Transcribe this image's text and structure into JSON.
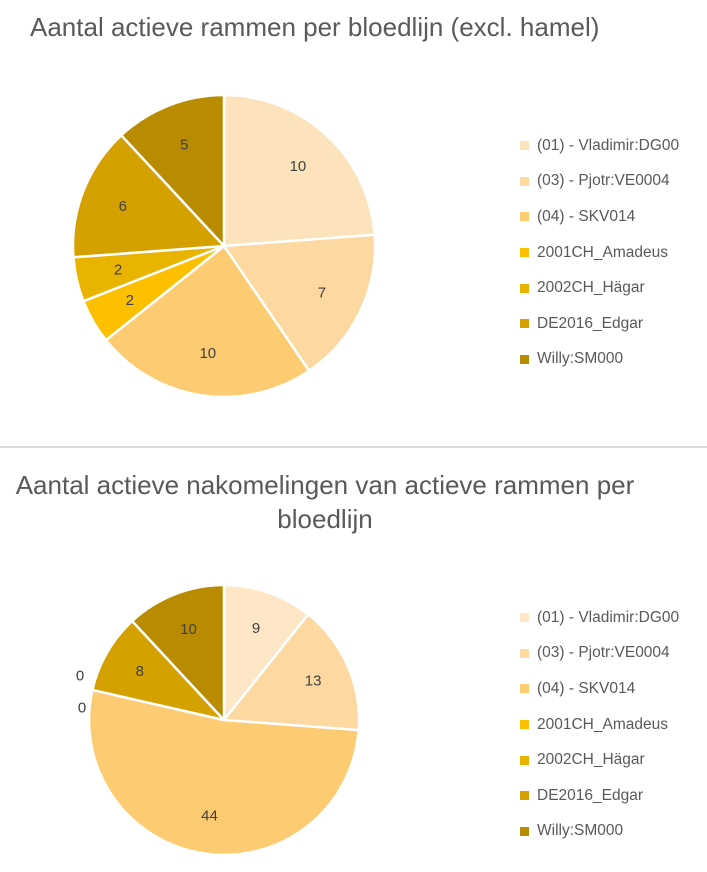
{
  "chart_data": [
    {
      "type": "pie",
      "title": "Aantal actieve rammen per bloedlijn (excl. hamel)",
      "categories": [
        "(01) - Vladimir:DG00",
        "(03) - Pjotr:VE0004",
        "(04) - SKV014",
        "2001CH_Amadeus",
        "2002CH_Hägar",
        "DE2016_Edgar",
        "Willy:SM000"
      ],
      "values": [
        10,
        7,
        10,
        2,
        2,
        6,
        5
      ],
      "data_labels": [
        "10",
        "7",
        "10",
        "2",
        "2",
        "6",
        "5"
      ],
      "colors": [
        "#fde3bb",
        "#fdd8a1",
        "#fdcb72",
        "#fcc000",
        "#e9b400",
        "#d4a100",
        "#b98b00"
      ],
      "legend_position": "right"
    },
    {
      "type": "pie",
      "title": "Aantal actieve nakomelingen van actieve rammen per bloedlijn",
      "categories": [
        "(01) - Vladimir:DG00",
        "(03) - Pjotr:VE0004",
        "(04) - SKV014",
        "2001CH_Amadeus",
        "2002CH_Hägar",
        "DE2016_Edgar",
        "Willy:SM000"
      ],
      "values": [
        9,
        13,
        44,
        0,
        0,
        8,
        10
      ],
      "data_labels": [
        "9",
        "13",
        "44",
        "0",
        "0",
        "8",
        "10"
      ],
      "colors": [
        "#fde7c7",
        "#fdd8a1",
        "#fdcb72",
        "#fcc000",
        "#e9b400",
        "#d4a100",
        "#b98b00"
      ],
      "legend_position": "right"
    }
  ]
}
